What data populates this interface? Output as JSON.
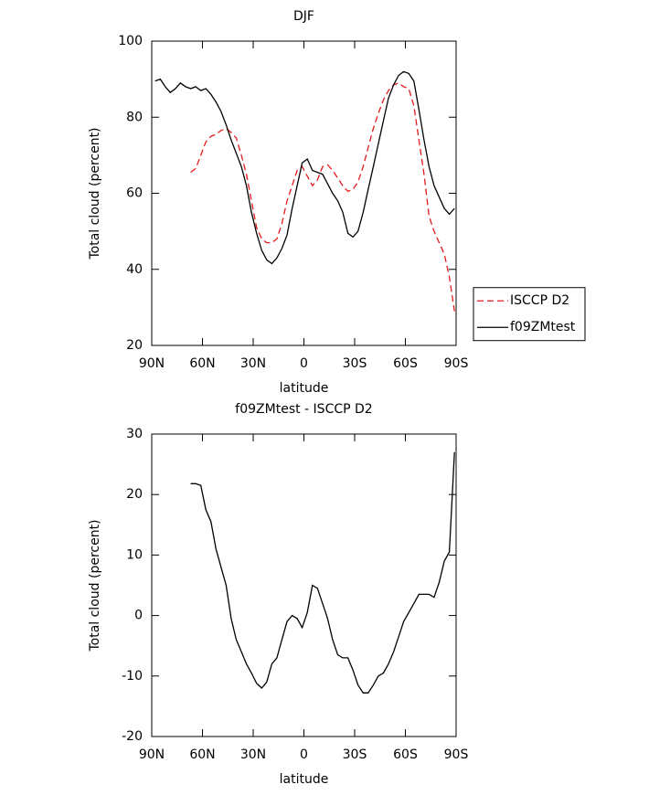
{
  "chart_data": [
    {
      "type": "line",
      "title": "DJF",
      "x_label": "latitude",
      "y_label": "Total cloud (percent)",
      "x": [
        88,
        85,
        82,
        79,
        76,
        73,
        70,
        67,
        64,
        61,
        58,
        55,
        52,
        49,
        46,
        43,
        40,
        37,
        34,
        31,
        28,
        25,
        22,
        19,
        16,
        13,
        10,
        7,
        4,
        1,
        -2,
        -5,
        -8,
        -11,
        -14,
        -17,
        -20,
        -23,
        -26,
        -29,
        -32,
        -35,
        -38,
        -41,
        -44,
        -47,
        -50,
        -53,
        -56,
        -59,
        -62,
        -65,
        -68,
        -71,
        -74,
        -77,
        -80,
        -83,
        -86,
        -89
      ],
      "xlim": [
        90,
        -90
      ],
      "xticks": [
        {
          "value": 90,
          "label": "90N"
        },
        {
          "value": 60,
          "label": "60N"
        },
        {
          "value": 30,
          "label": "30N"
        },
        0,
        {
          "value": -30,
          "label": "30S"
        },
        {
          "value": -60,
          "label": "60S"
        },
        {
          "value": -90,
          "label": "90S"
        }
      ],
      "ylim": [
        20,
        100
      ],
      "yticks": [
        20,
        40,
        60,
        80,
        100
      ],
      "legend": "right",
      "series": [
        {
          "name": "ISCCP D2",
          "color": "#e41a1c",
          "dashed": true,
          "values": [
            null,
            null,
            null,
            null,
            null,
            null,
            null,
            65.5,
            66.5,
            70,
            73.5,
            75,
            75.5,
            76.5,
            77,
            76,
            74.5,
            70,
            65,
            58,
            51,
            48,
            47,
            47,
            48,
            52,
            58,
            62,
            66,
            67,
            64.5,
            62,
            63.5,
            67,
            67.5,
            66,
            64,
            62,
            60.5,
            61,
            63,
            67,
            72,
            77,
            81,
            84.5,
            87,
            88.5,
            89,
            88,
            87.5,
            83,
            74,
            65,
            54,
            50,
            47,
            44,
            38,
            29
          ]
        },
        {
          "name": "f09ZMtest",
          "color": "#000000",
          "dashed": false,
          "values": [
            89.5,
            90,
            88,
            86.5,
            87.5,
            89,
            88,
            87.5,
            88,
            87,
            87.5,
            86,
            84,
            81.5,
            78,
            74,
            70.5,
            67,
            62,
            55,
            49.5,
            45,
            42.5,
            41.5,
            43,
            45.5,
            49,
            56,
            62,
            68,
            69,
            66,
            65.5,
            65,
            62.5,
            60,
            58,
            55,
            49.5,
            48.5,
            50,
            55,
            61,
            67,
            73,
            79,
            85,
            88.5,
            91,
            92,
            91.5,
            89.5,
            82,
            74,
            67,
            62,
            59,
            56,
            54.5,
            56
          ]
        }
      ]
    },
    {
      "type": "line",
      "title": "f09ZMtest - ISCCP D2",
      "x_label": "latitude",
      "y_label": "Total cloud (percent)",
      "x": [
        88,
        85,
        82,
        79,
        76,
        73,
        70,
        67,
        64,
        61,
        58,
        55,
        52,
        49,
        46,
        43,
        40,
        37,
        34,
        31,
        28,
        25,
        22,
        19,
        16,
        13,
        10,
        7,
        4,
        1,
        -2,
        -5,
        -8,
        -11,
        -14,
        -17,
        -20,
        -23,
        -26,
        -29,
        -32,
        -35,
        -38,
        -41,
        -44,
        -47,
        -50,
        -53,
        -56,
        -59,
        -62,
        -65,
        -68,
        -71,
        -74,
        -77,
        -80,
        -83,
        -86,
        -89
      ],
      "xlim": [
        90,
        -90
      ],
      "xticks": [
        {
          "value": 90,
          "label": "90N"
        },
        {
          "value": 60,
          "label": "60N"
        },
        {
          "value": 30,
          "label": "30N"
        },
        0,
        {
          "value": -30,
          "label": "30S"
        },
        {
          "value": -60,
          "label": "60S"
        },
        {
          "value": -90,
          "label": "90S"
        }
      ],
      "ylim": [
        -20,
        30
      ],
      "yticks": [
        -20,
        -10,
        0,
        10,
        20,
        30
      ],
      "series": [
        {
          "color": "#000000",
          "dashed": false,
          "values": [
            null,
            null,
            null,
            null,
            null,
            null,
            null,
            21.8,
            21.8,
            21.5,
            17.5,
            15.5,
            11,
            8,
            5,
            -0.5,
            -4,
            -6,
            -8,
            -9.5,
            -11.2,
            -12,
            -11,
            -8,
            -7,
            -4,
            -1,
            0,
            -0.5,
            -2,
            0.5,
            5,
            4.5,
            2,
            -0.5,
            -4,
            -6.5,
            -7,
            -7,
            -9,
            -11.5,
            -12.8,
            -12.8,
            -11.5,
            -10,
            -9.5,
            -8,
            -6,
            -3.5,
            -1,
            0.5,
            2,
            3.5,
            3.5,
            3.5,
            3,
            5.5,
            9,
            10.5,
            27
          ]
        }
      ]
    }
  ]
}
